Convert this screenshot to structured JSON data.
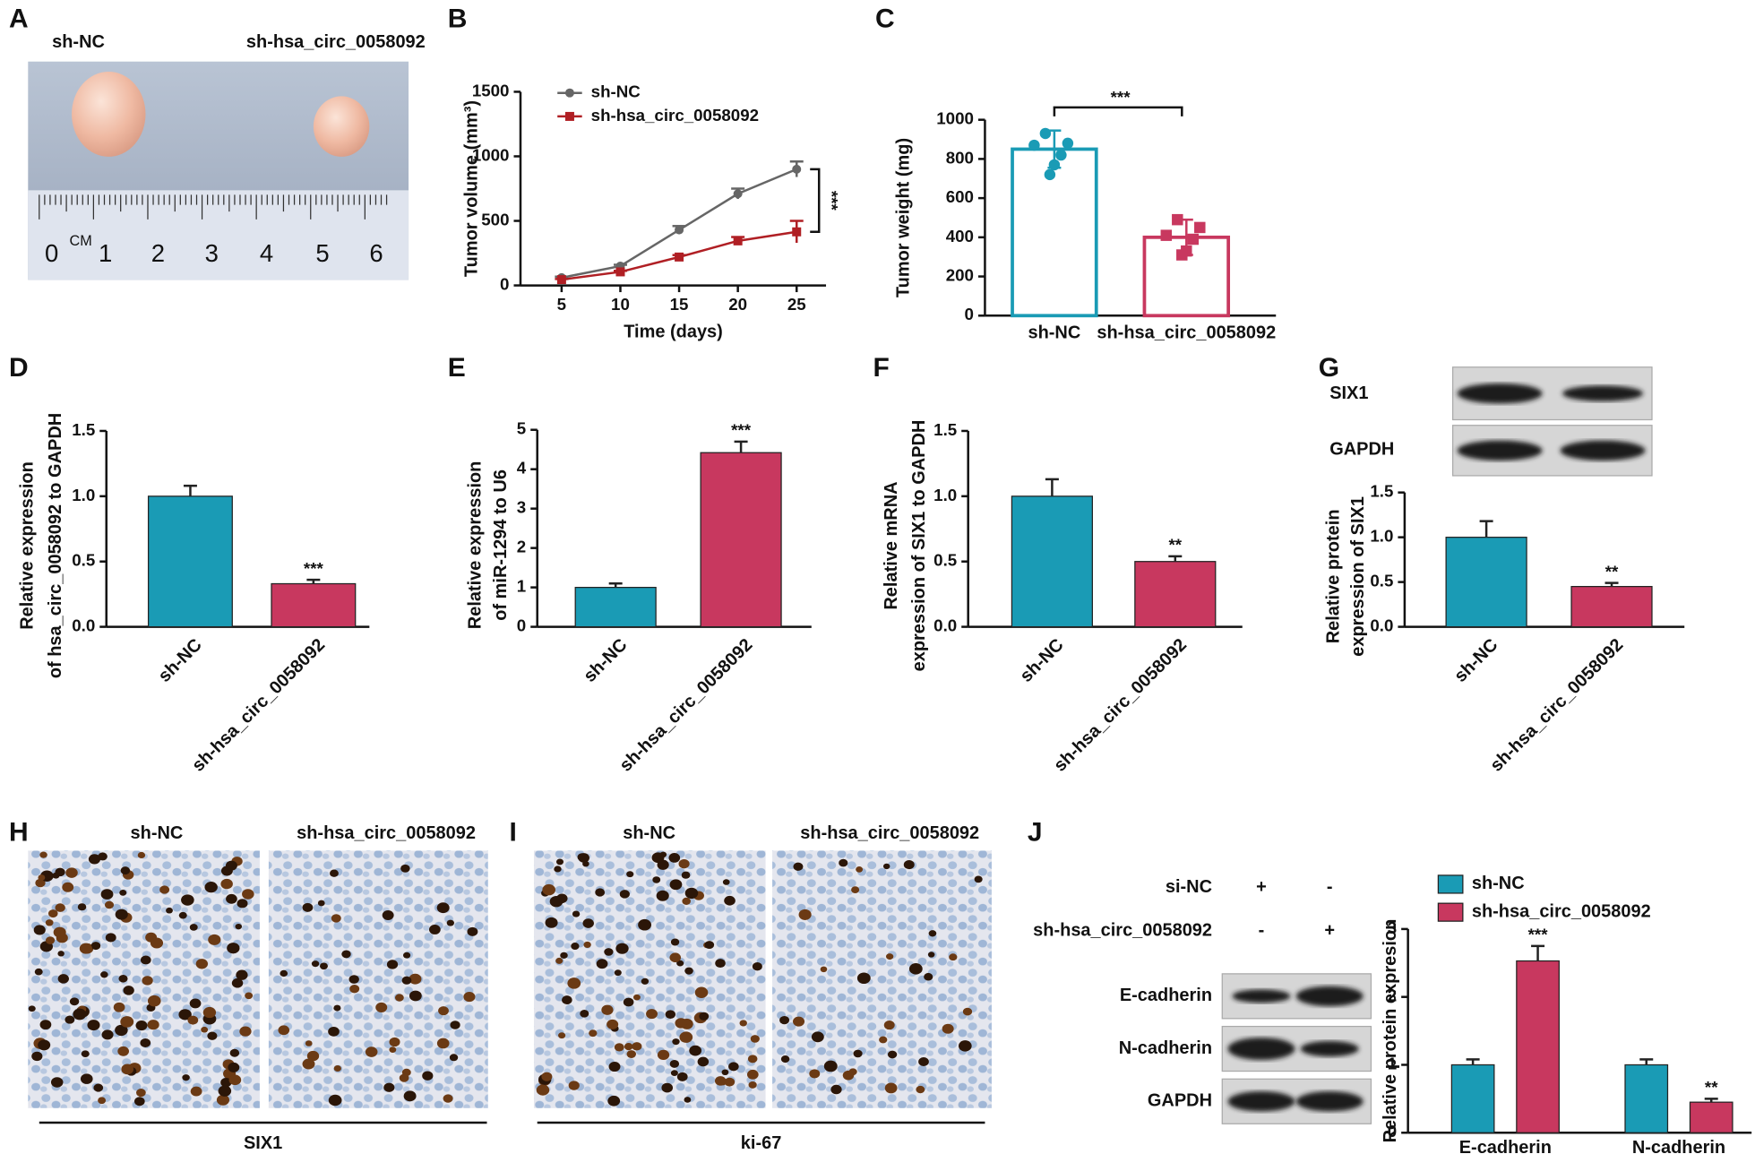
{
  "panel_labels": [
    "A",
    "B",
    "C",
    "D",
    "E",
    "F",
    "G",
    "H",
    "I",
    "J"
  ],
  "panel_a": {
    "groups": [
      "sh-NC",
      "sh-hsa_circ_0058092"
    ],
    "ruler": [
      "0",
      "CM",
      "1",
      "2",
      "3",
      "4",
      "5",
      "6"
    ]
  },
  "chart_data": [
    {
      "type": "line",
      "xlabel": "Time (days)",
      "ylabel": "Tumor volume (mm³)",
      "x": [
        5,
        10,
        15,
        20,
        25
      ],
      "xlim": [
        1.5,
        27.5
      ],
      "xticks": [
        5,
        10,
        15,
        20,
        25
      ],
      "ylim": [
        0,
        1500
      ],
      "yticks": [
        0,
        500,
        1000,
        1500
      ],
      "series": [
        {
          "name": "sh-NC",
          "color": "#666666",
          "marker": "circle",
          "values": [
            60,
            150,
            430,
            710,
            900
          ],
          "errors": [
            8,
            10,
            30,
            40,
            60
          ]
        },
        {
          "name": "sh-hsa_circ_0058092",
          "color": "#b01f24",
          "marker": "square",
          "values": [
            45,
            105,
            220,
            345,
            415
          ],
          "errors": [
            5,
            8,
            15,
            30,
            85
          ]
        }
      ],
      "comparison": "***"
    },
    {
      "type": "bar",
      "ylabel": "Tumor weight (mg)",
      "categories": [
        "sh-NC",
        "sh-hsa_circ_0058092"
      ],
      "values": [
        850,
        400
      ],
      "errors": [
        95,
        90
      ],
      "colors": [
        "#1a9bb5",
        "#c8385f"
      ],
      "filled": false,
      "points": [
        [
          930,
          880,
          870,
          820,
          770,
          720
        ],
        [
          490,
          450,
          410,
          390,
          330,
          310
        ]
      ],
      "point_markers": [
        "circle",
        "square"
      ],
      "ylim": [
        0,
        1000
      ],
      "yticks": [
        0,
        200,
        400,
        600,
        800,
        1000
      ],
      "comparison": "***"
    },
    {
      "type": "bar",
      "ylabel": [
        "Relative expression",
        "of hsa_circ_0058092 to GAPDH"
      ],
      "categories": [
        "sh-NC",
        "sh-hsa_circ_0058092"
      ],
      "values": [
        1.0,
        0.33
      ],
      "errors": [
        0.08,
        0.03
      ],
      "colors": [
        "#1a9bb5",
        "#c8385f"
      ],
      "filled": true,
      "xtick_rotation": -45,
      "ylim": [
        0,
        1.5
      ],
      "yticks": [
        {
          "value": 0,
          "label": "0.0"
        },
        0.5,
        {
          "value": 1,
          "label": "1.0"
        },
        1.5
      ],
      "significance": [
        null,
        "***"
      ]
    },
    {
      "type": "bar",
      "ylabel": [
        "Relative expression",
        "of miR-1294 to U6"
      ],
      "categories": [
        "sh-NC",
        "sh-hsa_circ_0058092"
      ],
      "values": [
        1.0,
        4.42
      ],
      "errors": [
        0.1,
        0.28
      ],
      "colors": [
        "#1a9bb5",
        "#c8385f"
      ],
      "filled": true,
      "xtick_rotation": -45,
      "ylim": [
        0,
        5
      ],
      "yticks": [
        0,
        1,
        2,
        3,
        4,
        5
      ],
      "significance": [
        null,
        "***"
      ]
    },
    {
      "type": "bar",
      "ylabel": [
        "Relative mRNA",
        "expression of SIX1 to GAPDH"
      ],
      "categories": [
        "sh-NC",
        "sh-hsa_circ_0058092"
      ],
      "values": [
        1.0,
        0.5
      ],
      "errors": [
        0.13,
        0.04
      ],
      "colors": [
        "#1a9bb5",
        "#c8385f"
      ],
      "filled": true,
      "xtick_rotation": -45,
      "ylim": [
        0,
        1.5
      ],
      "yticks": [
        {
          "value": 0,
          "label": "0.0"
        },
        0.5,
        {
          "value": 1,
          "label": "1.0"
        },
        1.5
      ],
      "significance": [
        null,
        "**"
      ]
    },
    {
      "type": "bar",
      "ylabel": [
        "Relative protein",
        "expression of SIX1"
      ],
      "categories": [
        "sh-NC",
        "sh-hsa_circ_0058092"
      ],
      "values": [
        1.0,
        0.45
      ],
      "errors": [
        0.18,
        0.04
      ],
      "colors": [
        "#1a9bb5",
        "#c8385f"
      ],
      "filled": true,
      "xtick_rotation": -45,
      "ylim": [
        0,
        1.5
      ],
      "yticks": [
        {
          "value": 0,
          "label": "0.0"
        },
        0.5,
        {
          "value": 1,
          "label": "1.0"
        },
        1.5
      ],
      "significance": [
        null,
        "**"
      ]
    },
    {
      "type": "bar",
      "ylabel": "Relative protein expresion",
      "categories": [
        "E-cadherin",
        "N-cadherin"
      ],
      "filled": true,
      "series": [
        {
          "name": "sh-NC",
          "color": "#1a9bb5",
          "values": [
            1.0,
            1.0
          ],
          "errors": [
            0.08,
            0.08
          ],
          "significance": [
            null,
            null
          ]
        },
        {
          "name": "sh-hsa_circ_0058092",
          "color": "#c8385f",
          "values": [
            2.53,
            0.45
          ],
          "errors": [
            0.22,
            0.05
          ],
          "significance": [
            "***",
            "**"
          ]
        }
      ],
      "ylim": [
        0,
        3
      ],
      "yticks": [
        0,
        1,
        2,
        3
      ]
    }
  ],
  "panel_g_blot": {
    "rows": [
      "SIX1",
      "GAPDH"
    ]
  },
  "panel_h": {
    "groups": [
      "sh-NC",
      "sh-hsa_circ_0058092"
    ],
    "stain": "SIX1"
  },
  "panel_i": {
    "groups": [
      "sh-NC",
      "sh-hsa_circ_0058092"
    ],
    "stain": "ki-67"
  },
  "panel_j_blot": {
    "conditions": [
      {
        "label": "si-NC",
        "lanes": [
          "+",
          "-"
        ]
      },
      {
        "label": "sh-hsa_circ_0058092",
        "lanes": [
          "-",
          "+"
        ]
      }
    ],
    "rows": [
      "E-cadherin",
      "N-cadherin",
      "GAPDH"
    ]
  }
}
